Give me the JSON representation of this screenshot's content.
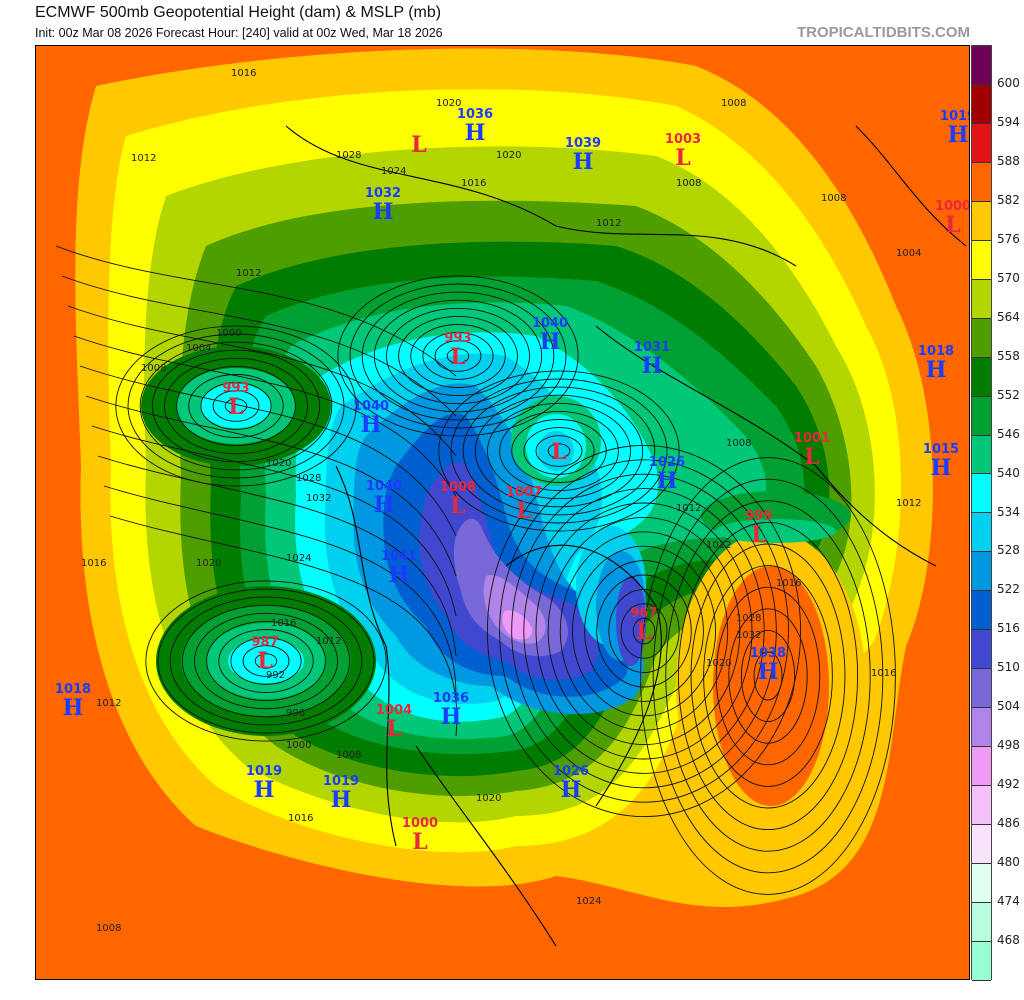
{
  "header": {
    "title": "ECMWF 500mb Geopotential Height (dam) & MSLP (mb)",
    "subtitle": "Init: 00z Mar 08 2026   Forecast Hour: [240]   valid at 00z Wed, Mar 18 2026",
    "brand": "TROPICALTIDBITS.COM"
  },
  "colorbar": {
    "labels": [
      "600",
      "594",
      "588",
      "582",
      "576",
      "570",
      "564",
      "558",
      "552",
      "546",
      "540",
      "534",
      "528",
      "522",
      "516",
      "510",
      "504",
      "498",
      "492",
      "486",
      "480",
      "474",
      "468"
    ],
    "colors": [
      "#6e0058",
      "#a00000",
      "#e01414",
      "#ff6600",
      "#ffc800",
      "#ffff00",
      "#b4d600",
      "#4e9e00",
      "#007c00",
      "#00a032",
      "#00c878",
      "#00ffff",
      "#00d0f0",
      "#0098e0",
      "#0060d0",
      "#4048d0",
      "#7868d8",
      "#b084e8",
      "#f09af8",
      "#f4c2f8",
      "#f8e2fc",
      "#e0fff0",
      "#b8ffe0",
      "#98ffd0"
    ]
  },
  "pressure_centers": [
    {
      "type": "L",
      "value": ""
    },
    {
      "type": "H",
      "value": "1036"
    },
    {
      "type": "H",
      "value": "1039"
    },
    {
      "type": "L",
      "value": "1003"
    },
    {
      "type": "H",
      "value": "1019"
    },
    {
      "type": "L",
      "value": "1000"
    },
    {
      "type": "H",
      "value": "1032"
    },
    {
      "type": "L",
      "value": "993"
    },
    {
      "type": "H",
      "value": "1040"
    },
    {
      "type": "H",
      "value": "1031"
    },
    {
      "type": "H",
      "value": "1018"
    },
    {
      "type": "L",
      "value": "993"
    },
    {
      "type": "H",
      "value": "1040"
    },
    {
      "type": "L",
      "value": ""
    },
    {
      "type": "L",
      "value": "1001"
    },
    {
      "type": "H",
      "value": "1015"
    },
    {
      "type": "H",
      "value": "1026"
    },
    {
      "type": "L",
      "value": "1008"
    },
    {
      "type": "L",
      "value": "1007"
    },
    {
      "type": "H",
      "value": "1040"
    },
    {
      "type": "L",
      "value": "999"
    },
    {
      "type": "H",
      "value": "1041"
    },
    {
      "type": "L",
      "value": "987"
    },
    {
      "type": "L",
      "value": "967"
    },
    {
      "type": "H",
      "value": "1038"
    },
    {
      "type": "H",
      "value": "1018"
    },
    {
      "type": "L",
      "value": "1004"
    },
    {
      "type": "H",
      "value": "1036"
    },
    {
      "type": "H",
      "value": "1019"
    },
    {
      "type": "H",
      "value": "1019"
    },
    {
      "type": "H",
      "value": "1026"
    },
    {
      "type": "L",
      "value": "1000"
    }
  ],
  "isobar_labels": [
    "1016",
    "1012",
    "1020",
    "1028",
    "1024",
    "1020",
    "1016",
    "1012",
    "1008",
    "1008",
    "1008",
    "1004",
    "1012",
    "1000",
    "1004",
    "1008",
    "1020",
    "1028",
    "1032",
    "1024",
    "1020",
    "1016",
    "1012",
    "992",
    "996",
    "1000",
    "1016",
    "1012",
    "1008",
    "1016",
    "1020",
    "1024",
    "1028",
    "1032",
    "1016",
    "1012",
    "1012",
    "1008",
    "1020",
    "1016",
    "1012",
    "1008"
  ],
  "colors": {
    "high": "#1a3cff",
    "low": "#e8283c"
  }
}
